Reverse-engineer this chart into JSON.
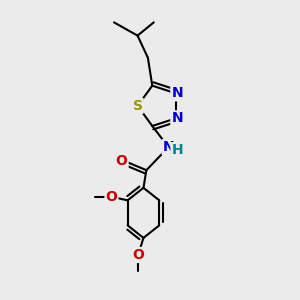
{
  "bg_color": "#ebebeb",
  "bond_color": "#000000",
  "bond_width": 1.5,
  "atoms": {
    "S": {
      "color": "#999900",
      "fontsize": 10,
      "fontweight": "bold"
    },
    "N": {
      "color": "#0000cc",
      "fontsize": 10,
      "fontweight": "bold"
    },
    "O": {
      "color": "#cc0000",
      "fontsize": 10,
      "fontweight": "bold"
    },
    "NH": {
      "color": "#0000cc",
      "fontsize": 10,
      "fontweight": "bold"
    },
    "H": {
      "color": "#008888",
      "fontsize": 10,
      "fontweight": "bold"
    }
  }
}
